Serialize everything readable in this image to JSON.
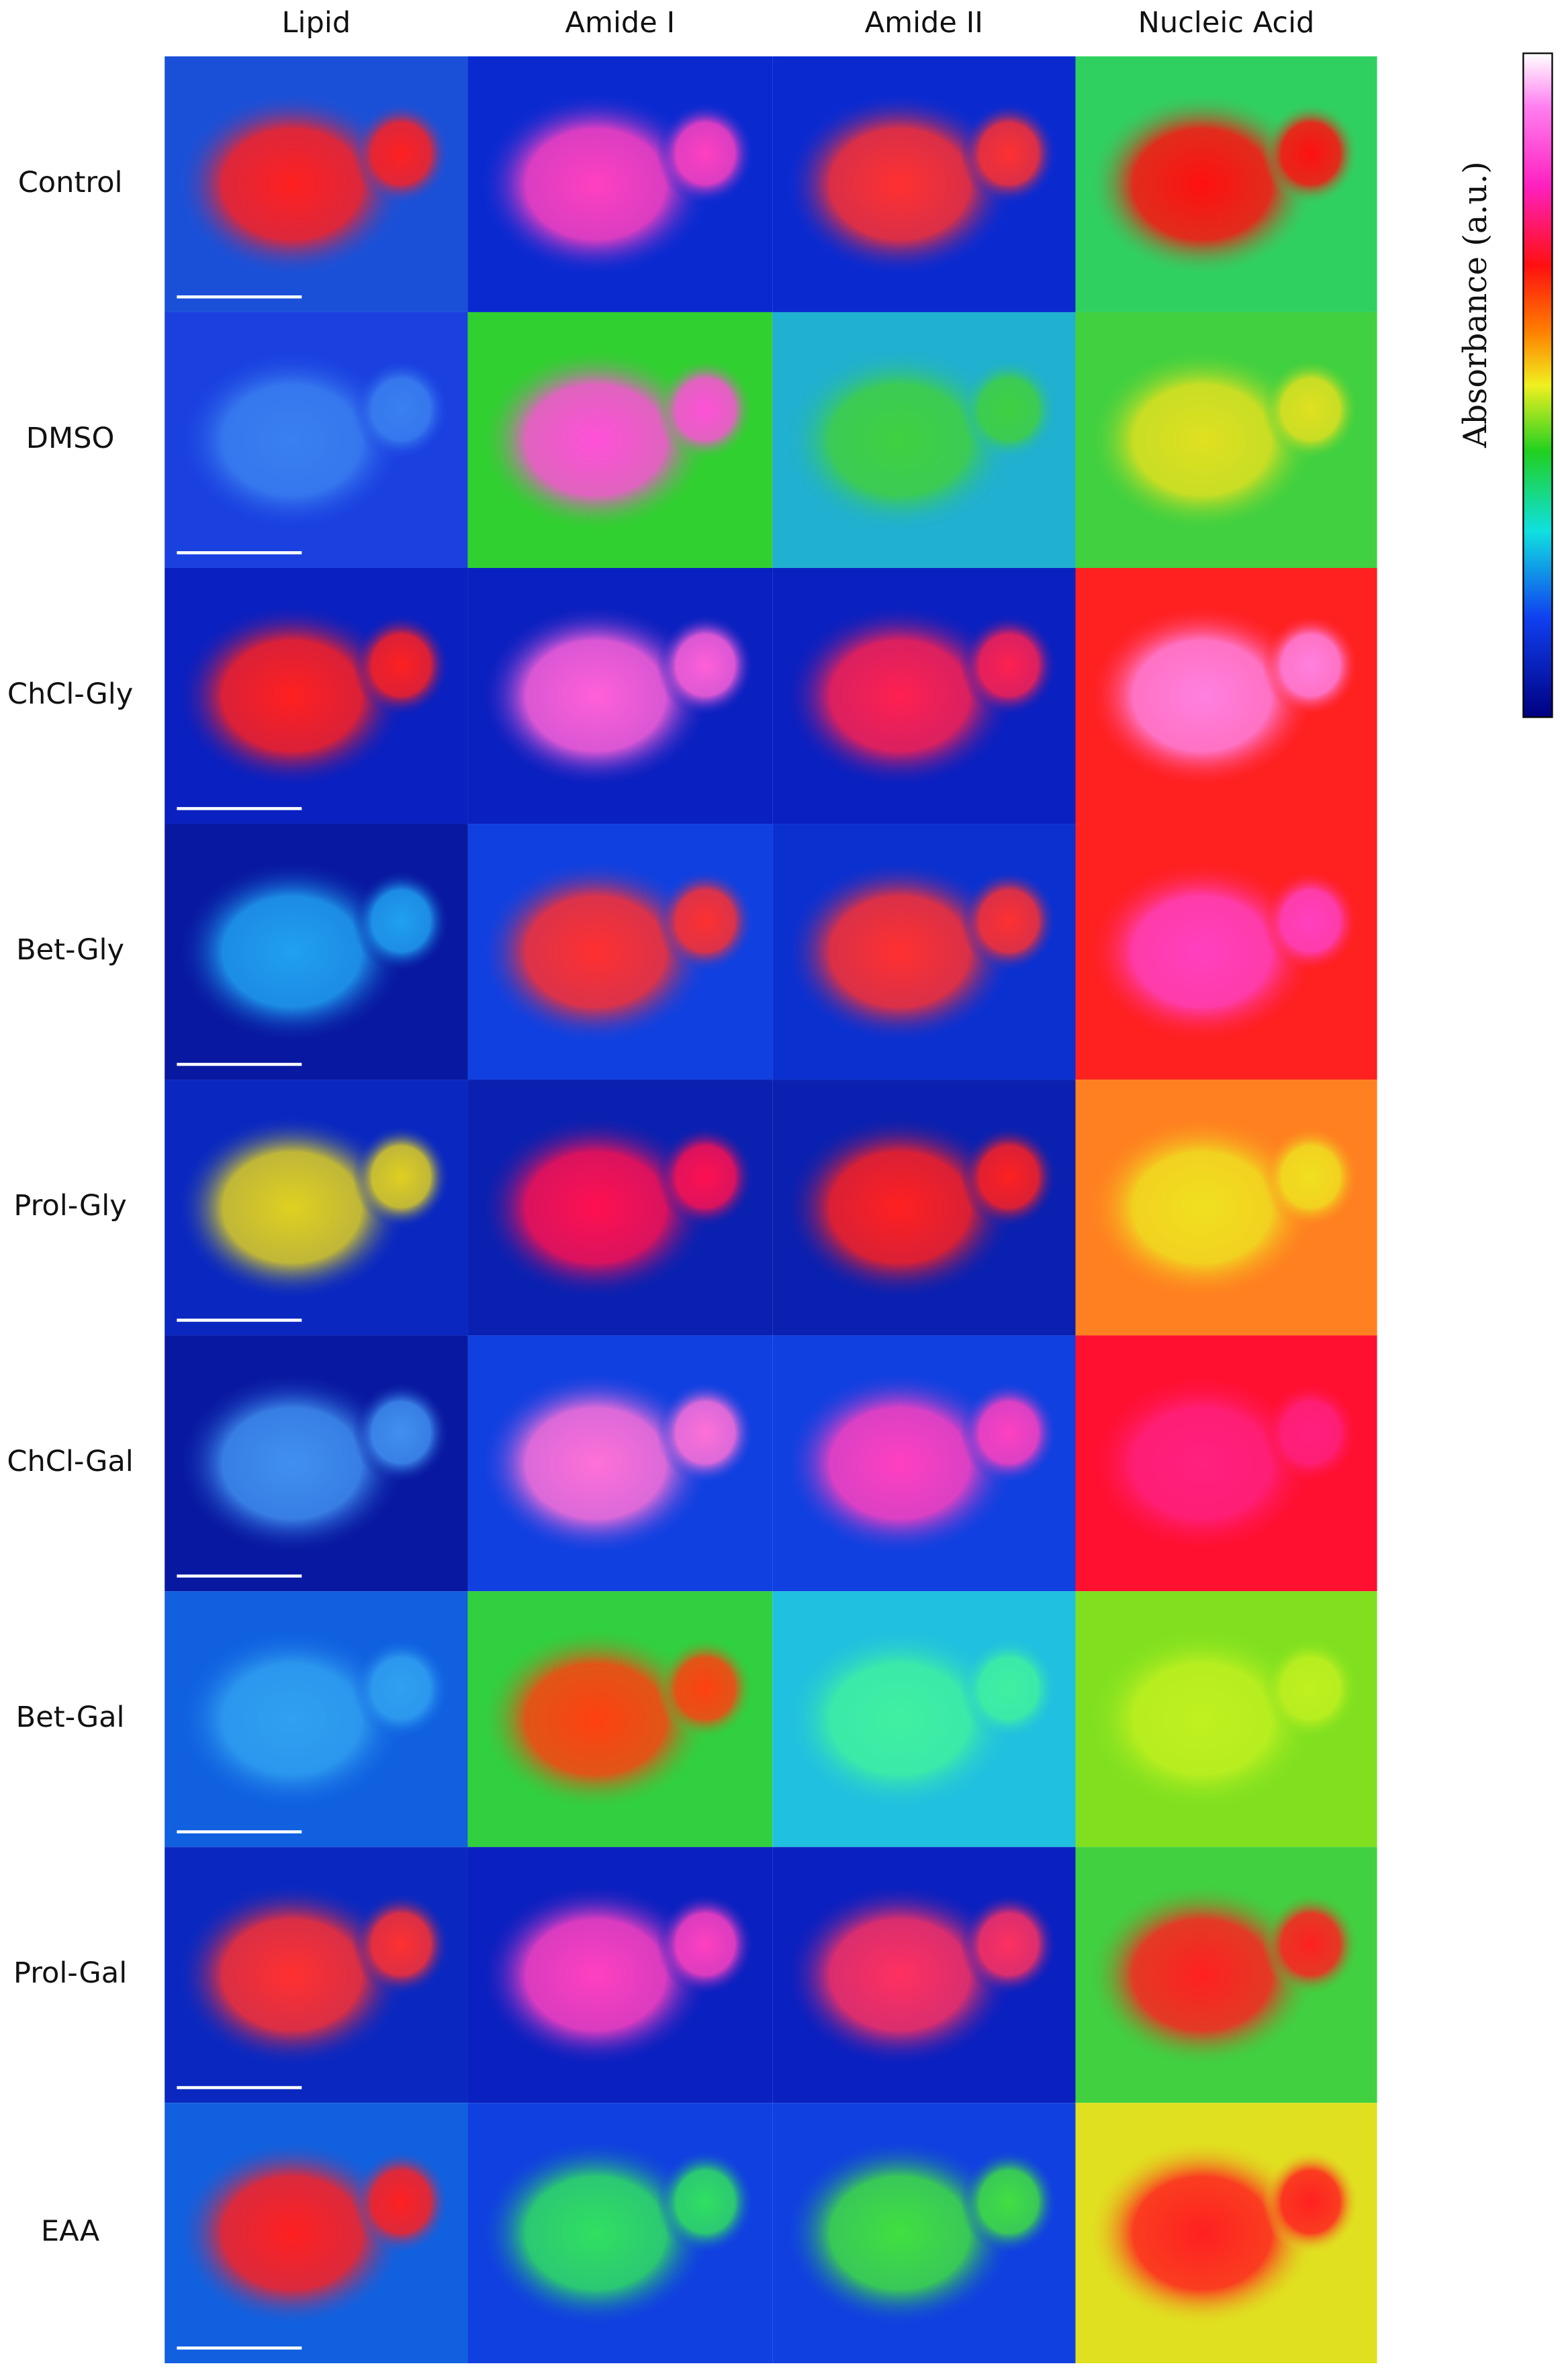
{
  "column_headers": [
    "Lipid",
    "Amide I",
    "Amide II",
    "Nucleic Acid"
  ],
  "rows": [
    "Control",
    "DMSO",
    "ChCl-Gly",
    "Bet-Gly",
    "Prol-Gly",
    "ChCl-Gal",
    "Bet-Gal",
    "Prol-Gal",
    "EAA"
  ],
  "colorbar_label": "Absorbance (a.u.)"
}
